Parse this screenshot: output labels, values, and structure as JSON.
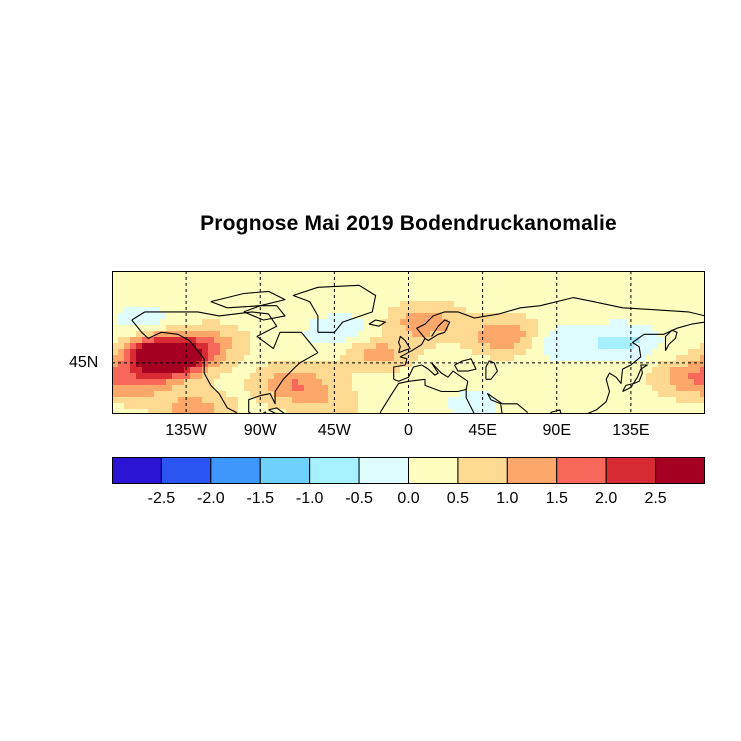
{
  "title": "Prognose Mai 2019 Bodendruckanomalie",
  "map": {
    "lon_ticks": [
      {
        "lon": -135,
        "label": "135W"
      },
      {
        "lon": -90,
        "label": "90W"
      },
      {
        "lon": -45,
        "label": "45W"
      },
      {
        "lon": 0,
        "label": "0"
      },
      {
        "lon": 45,
        "label": "45E"
      },
      {
        "lon": 90,
        "label": "90E"
      },
      {
        "lon": 135,
        "label": "135E"
      }
    ],
    "lat_ticks": [
      {
        "lat": 45,
        "label": "45N"
      }
    ],
    "lon_range": [
      -180,
      180
    ],
    "lat_range": [
      20,
      90
    ],
    "gridlines": "dashed"
  },
  "colorbar": {
    "colors": [
      "#2b14d4",
      "#2b55f2",
      "#3f97fb",
      "#6fd1fb",
      "#a6f0ff",
      "#dffdff",
      "#fefec0",
      "#fed991",
      "#fea76b",
      "#f7685a",
      "#d92b33",
      "#a50021"
    ],
    "tick_labels": [
      "-2.5",
      "-2.0",
      "-1.5",
      "-1.0",
      "-0.5",
      "0.0",
      "0.5",
      "1.0",
      "1.5",
      "2.0",
      "2.5"
    ],
    "tick_values": [
      -2.5,
      -2.0,
      -1.5,
      -1.0,
      -0.5,
      0.0,
      0.5,
      1.0,
      1.5,
      2.0,
      2.5
    ]
  },
  "anomaly_fields": [
    {
      "lon": -145,
      "lat": 47,
      "value": 2.6
    },
    {
      "lon": -150,
      "lat": 50,
      "value": 1.8
    },
    {
      "lon": -165,
      "lat": 35,
      "value": 0.9
    },
    {
      "lon": -120,
      "lat": 55,
      "value": 0.9
    },
    {
      "lon": -160,
      "lat": 65,
      "value": -0.5
    },
    {
      "lon": -70,
      "lat": 35,
      "value": 1.2
    },
    {
      "lon": -40,
      "lat": 60,
      "value": -0.7
    },
    {
      "lon": -20,
      "lat": 50,
      "value": 1.0
    },
    {
      "lon": 10,
      "lat": 65,
      "value": 1.1
    },
    {
      "lon": 60,
      "lat": 58,
      "value": 1.3
    },
    {
      "lon": 90,
      "lat": 55,
      "value": -0.7
    },
    {
      "lon": 130,
      "lat": 55,
      "value": -0.9
    },
    {
      "lon": 170,
      "lat": 38,
      "value": 1.0
    },
    {
      "lon": -130,
      "lat": 22,
      "value": 1.0
    },
    {
      "lon": -50,
      "lat": 25,
      "value": 0.6
    },
    {
      "lon": 40,
      "lat": 25,
      "value": -0.4
    }
  ]
}
